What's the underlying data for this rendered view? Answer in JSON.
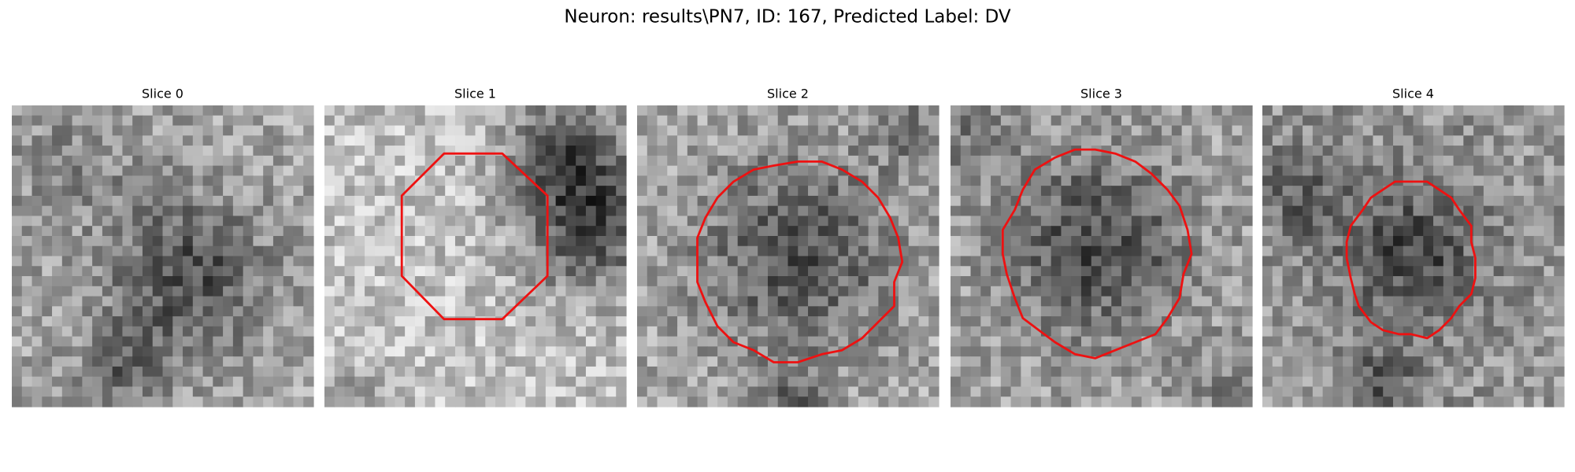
{
  "header": {
    "title": "Neuron: results\\PN7, ID: 167, Predicted Label: DV"
  },
  "panels": [
    {
      "title": "Slice 0"
    },
    {
      "title": "Slice 1"
    },
    {
      "title": "Slice 2"
    },
    {
      "title": "Slice 3"
    },
    {
      "title": "Slice 4"
    }
  ]
}
